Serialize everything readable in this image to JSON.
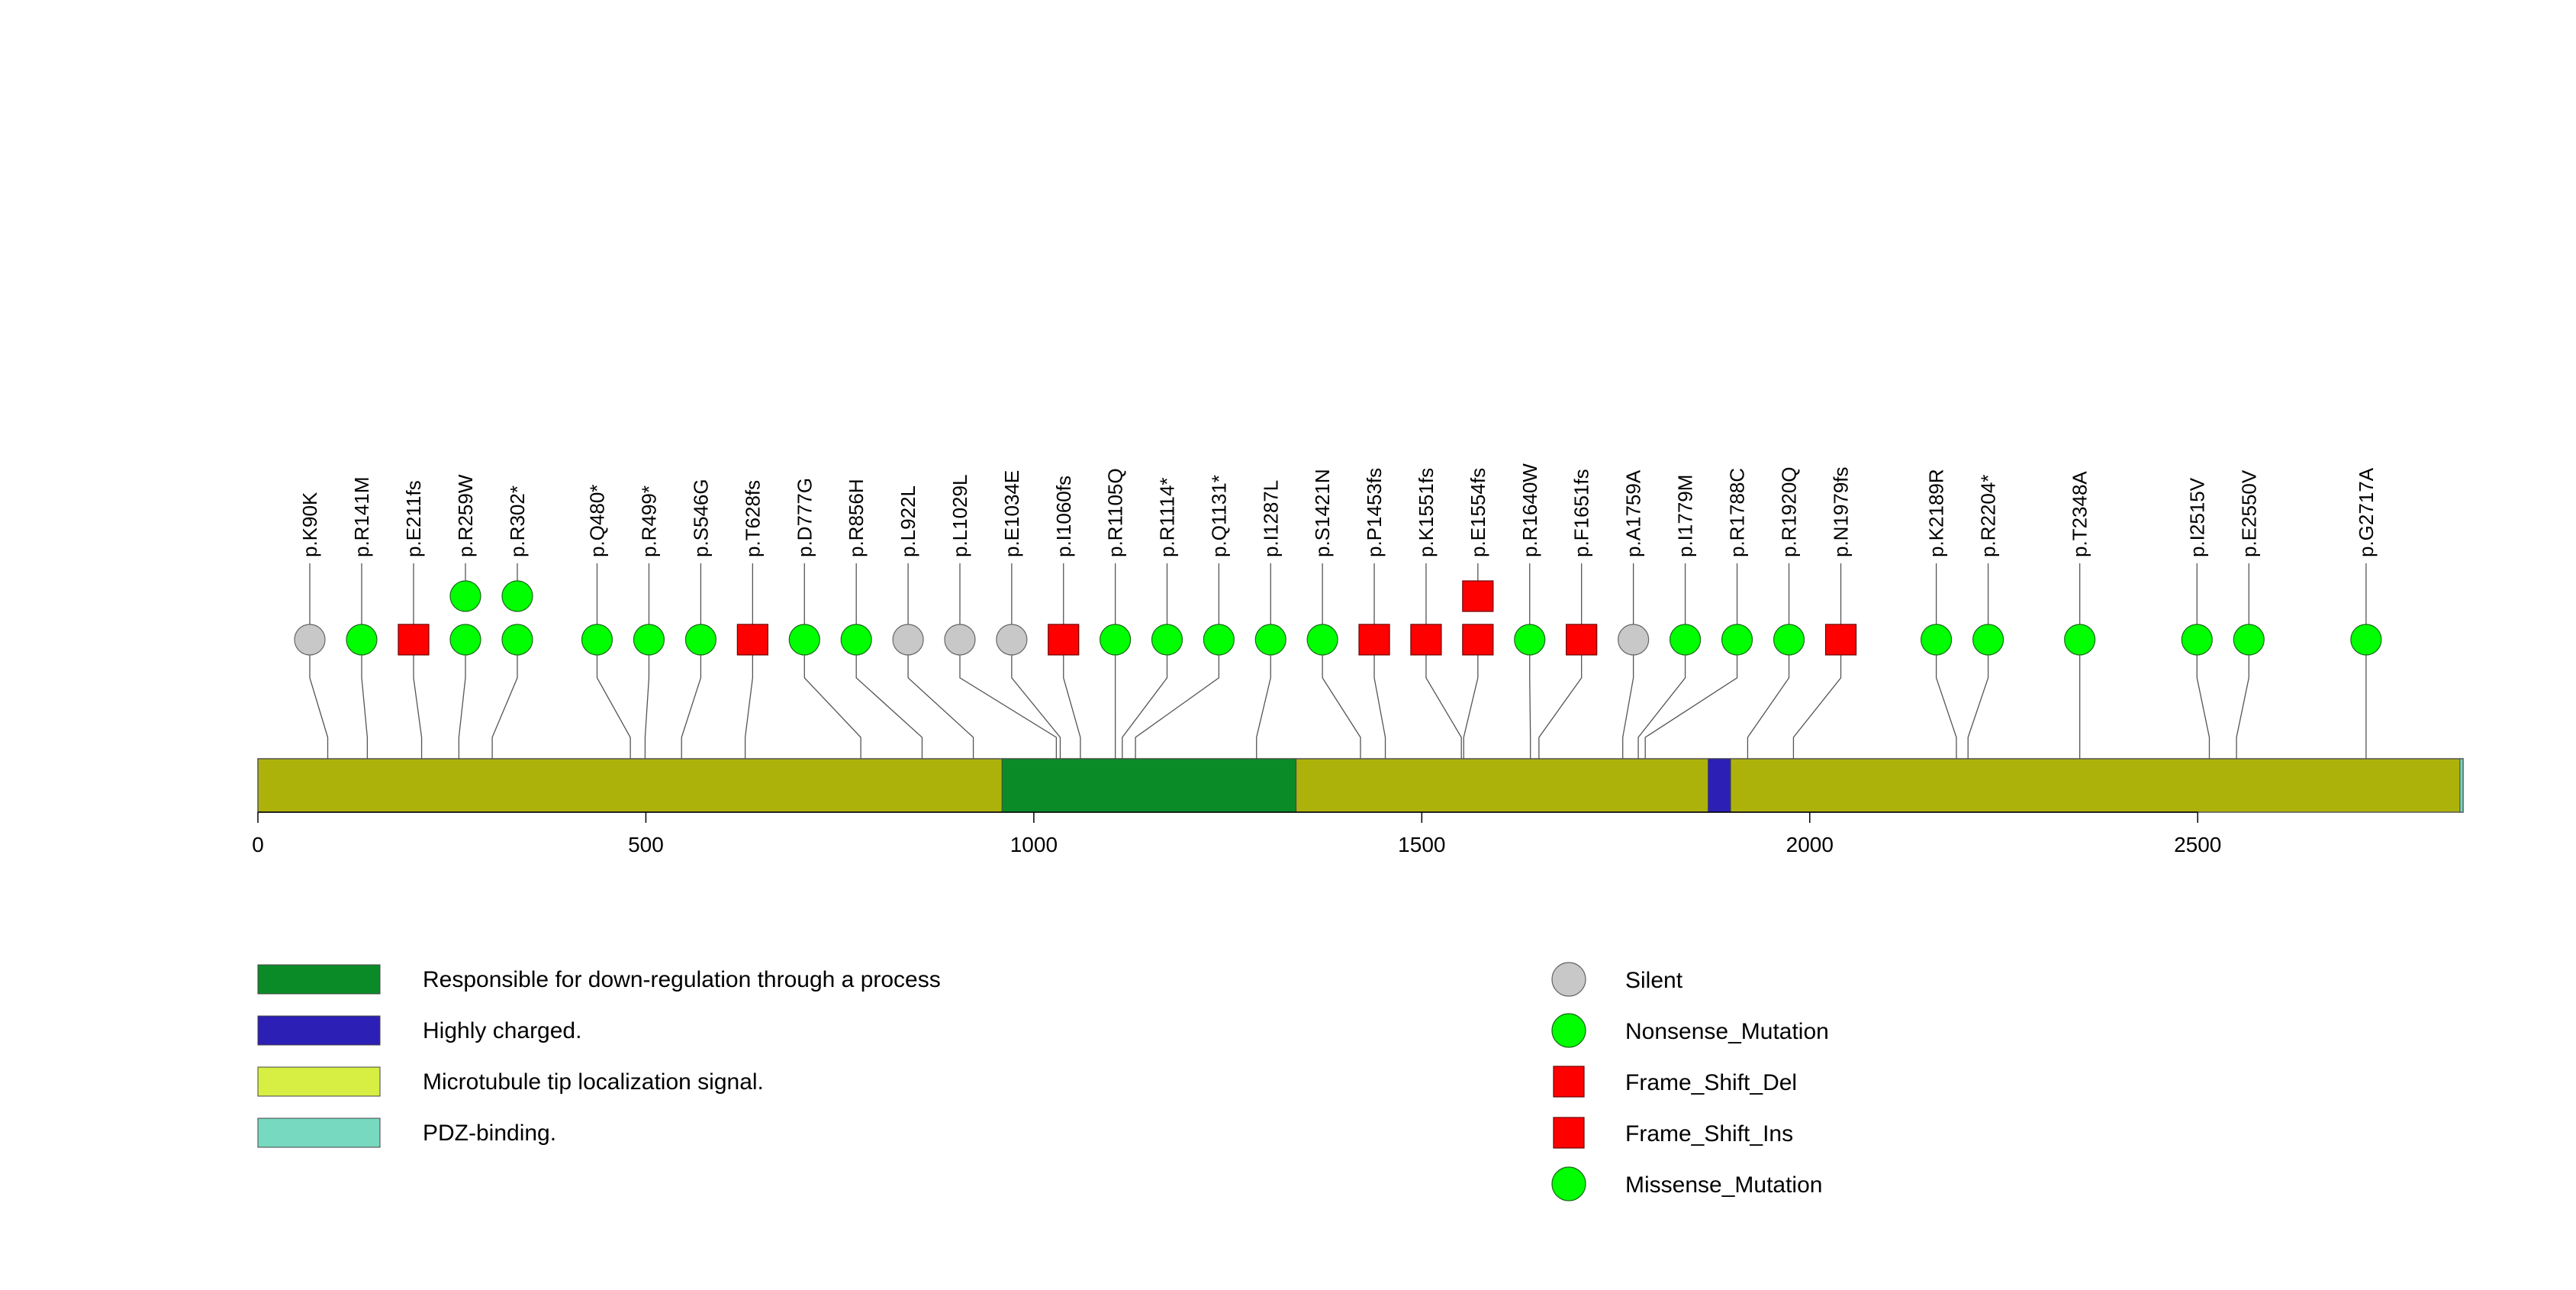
{
  "chart_data": {
    "type": "lollipop",
    "protein_length": 2842,
    "x_axis": {
      "range": [
        0,
        2842
      ],
      "ticks": [
        0,
        500,
        1000,
        1500,
        2000,
        2500
      ]
    },
    "domains": [
      {
        "name": "Responsible for down-regulation through a process",
        "start": 959,
        "end": 1338,
        "color": "#0b8b27"
      },
      {
        "name": "Highly charged.",
        "start": 1869,
        "end": 1898,
        "color": "#2c1fb5"
      },
      {
        "name": "PDZ-binding.",
        "start": 2838,
        "end": 2842,
        "color": "#77d9bf"
      }
    ],
    "backbone_color": "#adb20b",
    "mutations": [
      {
        "position": 90,
        "label": "p.K90K",
        "types": [
          "Silent"
        ]
      },
      {
        "position": 141,
        "label": "p.R141M",
        "types": [
          "Missense_Mutation"
        ]
      },
      {
        "position": 211,
        "label": "p.E211fs",
        "types": [
          "Frame_Shift_Del"
        ]
      },
      {
        "position": 259,
        "label": "p.R259W",
        "types": [
          "Missense_Mutation",
          "Missense_Mutation"
        ]
      },
      {
        "position": 302,
        "label": "p.R302*",
        "types": [
          "Nonsense_Mutation",
          "Nonsense_Mutation"
        ]
      },
      {
        "position": 480,
        "label": "p.Q480*",
        "types": [
          "Nonsense_Mutation"
        ]
      },
      {
        "position": 499,
        "label": "p.R499*",
        "types": [
          "Nonsense_Mutation"
        ]
      },
      {
        "position": 546,
        "label": "p.S546G",
        "types": [
          "Missense_Mutation"
        ]
      },
      {
        "position": 628,
        "label": "p.T628fs",
        "types": [
          "Frame_Shift_Del"
        ]
      },
      {
        "position": 777,
        "label": "p.D777G",
        "types": [
          "Missense_Mutation"
        ]
      },
      {
        "position": 856,
        "label": "p.R856H",
        "types": [
          "Missense_Mutation"
        ]
      },
      {
        "position": 922,
        "label": "p.L922L",
        "types": [
          "Silent"
        ]
      },
      {
        "position": 1029,
        "label": "p.L1029L",
        "types": [
          "Silent"
        ]
      },
      {
        "position": 1034,
        "label": "p.E1034E",
        "types": [
          "Silent"
        ]
      },
      {
        "position": 1060,
        "label": "p.I1060fs",
        "types": [
          "Frame_Shift_Del"
        ]
      },
      {
        "position": 1105,
        "label": "p.R1105Q",
        "types": [
          "Missense_Mutation"
        ]
      },
      {
        "position": 1114,
        "label": "p.R1114*",
        "types": [
          "Nonsense_Mutation"
        ]
      },
      {
        "position": 1131,
        "label": "p.Q1131*",
        "types": [
          "Nonsense_Mutation"
        ]
      },
      {
        "position": 1287,
        "label": "p.I1287L",
        "types": [
          "Missense_Mutation"
        ]
      },
      {
        "position": 1421,
        "label": "p.S1421N",
        "types": [
          "Missense_Mutation"
        ]
      },
      {
        "position": 1453,
        "label": "p.P1453fs",
        "types": [
          "Frame_Shift_Del"
        ]
      },
      {
        "position": 1551,
        "label": "p.K1551fs",
        "types": [
          "Frame_Shift_Del"
        ]
      },
      {
        "position": 1554,
        "label": "p.E1554fs",
        "types": [
          "Frame_Shift_Del",
          "Frame_Shift_Del"
        ]
      },
      {
        "position": 1640,
        "label": "p.R1640W",
        "types": [
          "Missense_Mutation"
        ]
      },
      {
        "position": 1651,
        "label": "p.F1651fs",
        "types": [
          "Frame_Shift_Del"
        ]
      },
      {
        "position": 1759,
        "label": "p.A1759A",
        "types": [
          "Silent"
        ]
      },
      {
        "position": 1779,
        "label": "p.I1779M",
        "types": [
          "Missense_Mutation"
        ]
      },
      {
        "position": 1788,
        "label": "p.R1788C",
        "types": [
          "Missense_Mutation"
        ]
      },
      {
        "position": 1920,
        "label": "p.R1920Q",
        "types": [
          "Missense_Mutation"
        ]
      },
      {
        "position": 1979,
        "label": "p.N1979fs",
        "types": [
          "Frame_Shift_Del"
        ]
      },
      {
        "position": 2189,
        "label": "p.K2189R",
        "types": [
          "Missense_Mutation"
        ]
      },
      {
        "position": 2204,
        "label": "p.R2204*",
        "types": [
          "Nonsense_Mutation"
        ]
      },
      {
        "position": 2348,
        "label": "p.T2348A",
        "types": [
          "Missense_Mutation"
        ]
      },
      {
        "position": 2515,
        "label": "p.I2515V",
        "types": [
          "Missense_Mutation"
        ]
      },
      {
        "position": 2550,
        "label": "p.E2550V",
        "types": [
          "Missense_Mutation"
        ]
      },
      {
        "position": 2717,
        "label": "p.G2717A",
        "types": [
          "Missense_Mutation"
        ]
      }
    ],
    "domain_legend": [
      {
        "label": "Responsible for down-regulation through a process",
        "color": "#0b8b27"
      },
      {
        "label": "Highly charged.",
        "color": "#2c1fb5"
      },
      {
        "label": "Microtubule tip localization signal.",
        "color": "#d7ef43"
      },
      {
        "label": "PDZ-binding.",
        "color": "#77d9bf"
      }
    ],
    "mutation_legend": [
      {
        "label": "Silent",
        "shape": "circle",
        "color": "#c8c8c8"
      },
      {
        "label": "Nonsense_Mutation",
        "shape": "circle",
        "color": "#00ff00"
      },
      {
        "label": "Frame_Shift_Del",
        "shape": "square",
        "color": "#ff0000"
      },
      {
        "label": "Frame_Shift_Ins",
        "shape": "square",
        "color": "#ff0000"
      },
      {
        "label": "Missense_Mutation",
        "shape": "circle",
        "color": "#00ff00"
      }
    ],
    "type_colors": {
      "Silent": "#c8c8c8",
      "Nonsense_Mutation": "#00ff00",
      "Missense_Mutation": "#00ff00",
      "Frame_Shift_Del": "#ff0000",
      "Frame_Shift_Ins": "#ff0000"
    }
  }
}
